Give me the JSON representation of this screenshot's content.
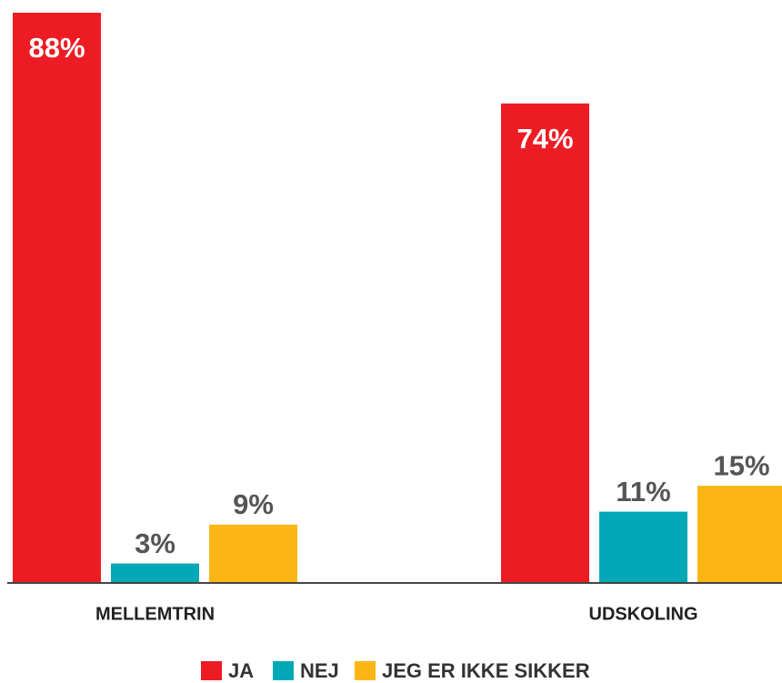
{
  "chart_data": {
    "type": "bar",
    "categories": [
      "MELLEMTRIN",
      "UDSKOLING"
    ],
    "series": [
      {
        "name": "JA",
        "color": "#ed1c24",
        "values": [
          88,
          74
        ],
        "value_labels": [
          "88%",
          "74%"
        ]
      },
      {
        "name": "NEJ",
        "color": "#00a9b5",
        "values": [
          3,
          11
        ],
        "value_labels": [
          "3%",
          "11%"
        ]
      },
      {
        "name": "JEG ER IKKE SIKKER",
        "color": "#fbb615",
        "values": [
          9,
          15
        ],
        "value_labels": [
          "9%",
          "15%"
        ]
      }
    ],
    "legend": "bottom"
  }
}
